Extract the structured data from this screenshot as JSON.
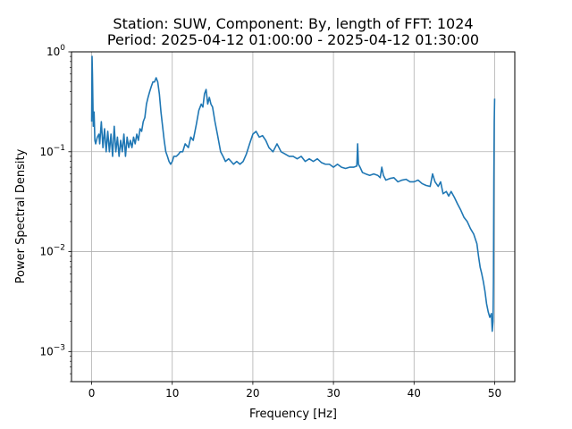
{
  "chart_data": {
    "type": "line",
    "title": "Station: SUW, Component: By, length of FFT: 1024",
    "subtitle": "Period: 2025-04-12 01:00:00 - 2025-04-12 01:30:00",
    "xlabel": "Frequency [Hz]",
    "ylabel": "Power Spectral Density",
    "xlim": [
      -2.5,
      52.5
    ],
    "ylim": [
      0.0005,
      1
    ],
    "yscale": "log",
    "grid": true,
    "xticks": [
      0,
      10,
      20,
      30,
      40,
      50
    ],
    "xtick_labels": [
      "0",
      "10",
      "20",
      "30",
      "40",
      "50"
    ],
    "yticks": [
      0.001,
      0.01,
      0.1,
      1
    ],
    "ytick_labels": [
      {
        "base": "10",
        "exp": "−3"
      },
      {
        "base": "10",
        "exp": "−2"
      },
      {
        "base": "10",
        "exp": "−1"
      },
      {
        "base": "10",
        "exp": "0"
      }
    ],
    "series_color": "#1f77b4",
    "series": [
      {
        "x": [
          0,
          0.05,
          0.1,
          0.2,
          0.3,
          0.4,
          0.5,
          0.7,
          0.9,
          1.0,
          1.2,
          1.4,
          1.6,
          1.8,
          2.0,
          2.2,
          2.4,
          2.6,
          2.8,
          3.0,
          3.2,
          3.4,
          3.6,
          3.8,
          4.0,
          4.2,
          4.4,
          4.6,
          4.8,
          5.0,
          5.2,
          5.4,
          5.6,
          5.8,
          6.0,
          6.2,
          6.4,
          6.6,
          6.8,
          7.0,
          7.2,
          7.4,
          7.6,
          7.8,
          8.0,
          8.2,
          8.4,
          8.6,
          8.8,
          9.0,
          9.2,
          9.4,
          9.6,
          9.8,
          10.0,
          10.2,
          10.5,
          10.8,
          11.0,
          11.3,
          11.6,
          12.0,
          12.3,
          12.6,
          13.0,
          13.3,
          13.6,
          13.8,
          14.0,
          14.2,
          14.4,
          14.6,
          14.8,
          15.0,
          15.3,
          15.6,
          16.0,
          16.3,
          16.6,
          17.0,
          17.3,
          17.6,
          18.0,
          18.4,
          18.8,
          19.2,
          19.6,
          20.0,
          20.4,
          20.8,
          21.2,
          21.6,
          22.0,
          22.5,
          23.0,
          23.5,
          24.0,
          24.5,
          25.0,
          25.5,
          26.0,
          26.5,
          27.0,
          27.5,
          28.0,
          28.5,
          29.0,
          29.5,
          30.0,
          30.5,
          31.0,
          31.5,
          32.0,
          32.5,
          32.9,
          33.0,
          33.1,
          33.3,
          33.6,
          34.0,
          34.5,
          35.0,
          35.5,
          35.8,
          36.0,
          36.2,
          36.5,
          37.0,
          37.5,
          38.0,
          38.5,
          39.0,
          39.5,
          40.0,
          40.5,
          41.0,
          41.5,
          42.0,
          42.3,
          42.6,
          43.0,
          43.3,
          43.6,
          44.0,
          44.3,
          44.6,
          45.0,
          45.4,
          45.8,
          46.2,
          46.6,
          47.0,
          47.4,
          47.8,
          48.0,
          48.2,
          48.4,
          48.6,
          48.8,
          49.0,
          49.2,
          49.4,
          49.6,
          49.7,
          49.8,
          49.85,
          49.9,
          49.95,
          50.0
        ],
        "y": [
          0.2,
          0.9,
          0.6,
          0.18,
          0.25,
          0.13,
          0.12,
          0.14,
          0.15,
          0.12,
          0.2,
          0.11,
          0.17,
          0.1,
          0.16,
          0.1,
          0.15,
          0.09,
          0.18,
          0.1,
          0.14,
          0.09,
          0.13,
          0.1,
          0.15,
          0.09,
          0.14,
          0.11,
          0.13,
          0.11,
          0.14,
          0.12,
          0.15,
          0.13,
          0.17,
          0.16,
          0.2,
          0.22,
          0.3,
          0.35,
          0.4,
          0.45,
          0.5,
          0.5,
          0.55,
          0.5,
          0.38,
          0.25,
          0.18,
          0.13,
          0.1,
          0.09,
          0.08,
          0.075,
          0.08,
          0.09,
          0.09,
          0.095,
          0.1,
          0.1,
          0.12,
          0.11,
          0.14,
          0.13,
          0.19,
          0.26,
          0.3,
          0.28,
          0.38,
          0.42,
          0.3,
          0.35,
          0.3,
          0.28,
          0.2,
          0.15,
          0.1,
          0.09,
          0.08,
          0.085,
          0.08,
          0.075,
          0.08,
          0.075,
          0.08,
          0.095,
          0.12,
          0.15,
          0.16,
          0.14,
          0.145,
          0.13,
          0.11,
          0.1,
          0.12,
          0.1,
          0.095,
          0.09,
          0.09,
          0.085,
          0.09,
          0.08,
          0.085,
          0.08,
          0.085,
          0.078,
          0.075,
          0.075,
          0.07,
          0.075,
          0.07,
          0.068,
          0.07,
          0.07,
          0.072,
          0.12,
          0.075,
          0.07,
          0.062,
          0.06,
          0.058,
          0.06,
          0.058,
          0.055,
          0.07,
          0.058,
          0.052,
          0.054,
          0.055,
          0.05,
          0.052,
          0.053,
          0.05,
          0.05,
          0.052,
          0.048,
          0.046,
          0.045,
          0.06,
          0.05,
          0.045,
          0.05,
          0.038,
          0.04,
          0.036,
          0.04,
          0.035,
          0.03,
          0.026,
          0.022,
          0.02,
          0.017,
          0.015,
          0.012,
          0.009,
          0.007,
          0.006,
          0.005,
          0.004,
          0.003,
          0.0025,
          0.0022,
          0.0024,
          0.0016,
          0.002,
          0.005,
          0.05,
          0.2,
          0.34
        ]
      }
    ]
  }
}
